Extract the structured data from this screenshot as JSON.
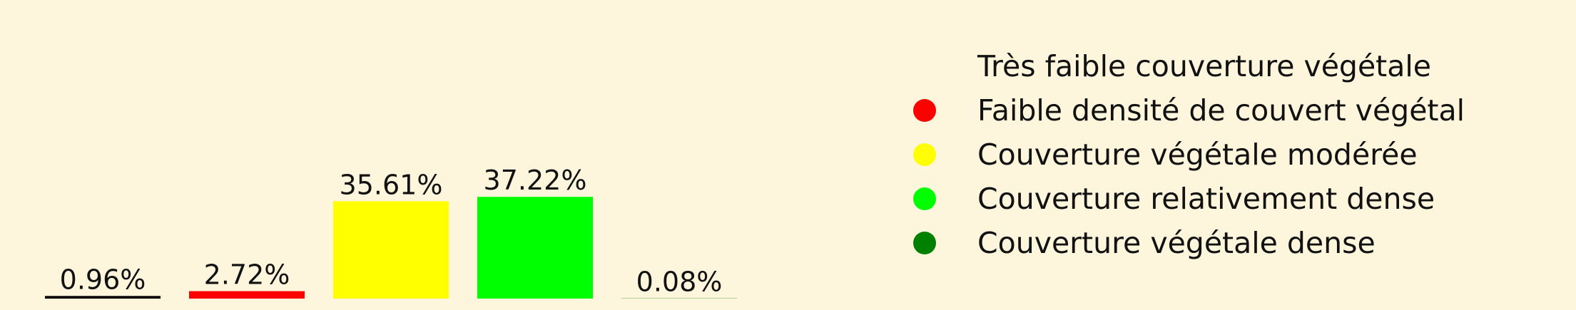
{
  "chart_data": {
    "type": "bar",
    "categories": [
      "Très faible couverture végétale",
      "Faible densité de couvert végétal",
      "Couverture végétale modérée",
      "Couverture relativement dense",
      "Couverture végétale dense"
    ],
    "values": [
      0.96,
      2.72,
      35.61,
      37.22,
      0.08
    ],
    "value_labels": [
      "0.96%",
      "2.72%",
      "35.61%",
      "37.22%",
      "0.08%"
    ],
    "colors": [
      "#000000",
      "#ff0000",
      "#ffff00",
      "#00ff00",
      "#008000"
    ],
    "legend_dot_colors": [
      "#fdf5dc",
      "#ff0000",
      "#ffff00",
      "#00ff00",
      "#008000"
    ],
    "ylim": [
      0,
      40
    ],
    "legend_position": "top-right",
    "grid": false,
    "axes_visible": false
  }
}
